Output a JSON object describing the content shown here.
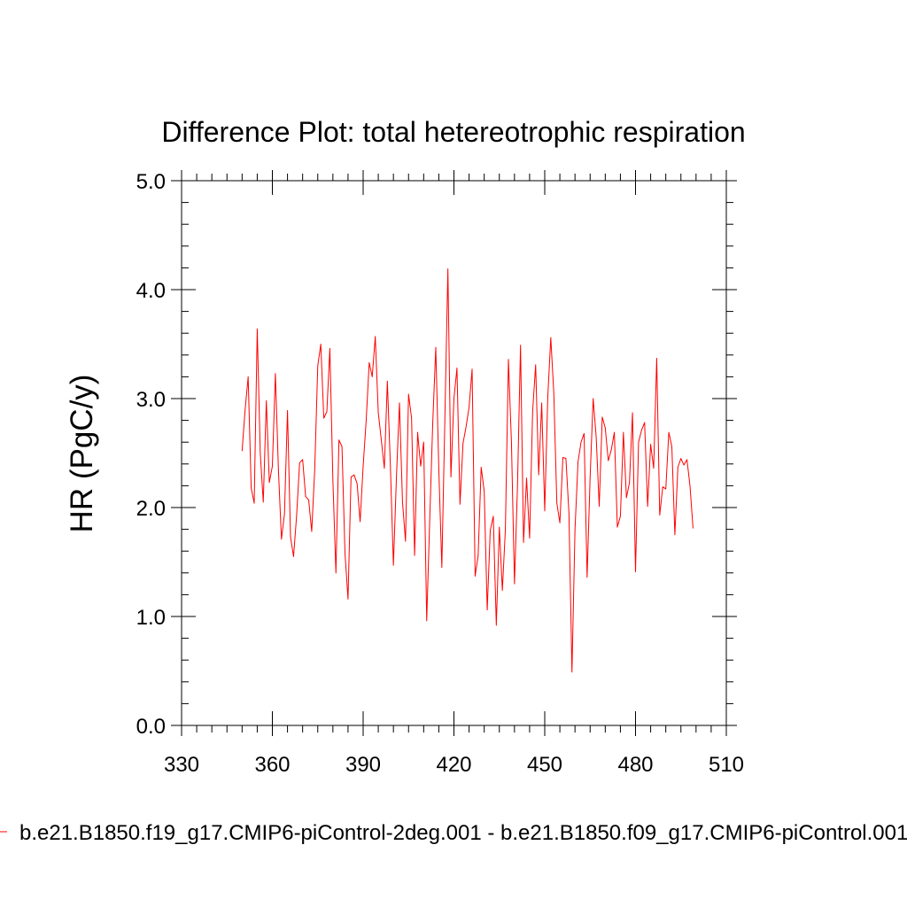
{
  "chart_data": {
    "type": "line",
    "title": "Difference Plot: total hetereotrophic respiration",
    "xlabel": "",
    "ylabel": "HR  (PgC/y)",
    "xlim": [
      330,
      510
    ],
    "ylim": [
      0,
      5
    ],
    "x_ticks": [
      330,
      360,
      390,
      420,
      450,
      480,
      510
    ],
    "x_tick_labels": [
      "330",
      "360",
      "390",
      "420",
      "450",
      "480",
      "510"
    ],
    "y_ticks": [
      0,
      1,
      2,
      3,
      4,
      5
    ],
    "y_tick_labels": [
      "0.0",
      "1.0",
      "2.0",
      "3.0",
      "4.0",
      "5.0"
    ],
    "x_minor_step": 5,
    "y_minor_step": 0.2,
    "grid": false,
    "legend_position": "bottom",
    "series": [
      {
        "name": "b.e21.B1850.f19_g17.CMIP6-piControl-2deg.001 - b.e21.B1850.f09_g17.CMIP6-piControl.001",
        "color": "#ff0000",
        "x": [
          350,
          351,
          352,
          353,
          354,
          355,
          356,
          357,
          358,
          359,
          360,
          361,
          362,
          363,
          364,
          365,
          366,
          367,
          368,
          369,
          370,
          371,
          372,
          373,
          374,
          375,
          376,
          377,
          378,
          379,
          380,
          381,
          382,
          383,
          384,
          385,
          386,
          387,
          388,
          389,
          390,
          391,
          392,
          393,
          394,
          395,
          396,
          397,
          398,
          399,
          400,
          401,
          402,
          403,
          404,
          405,
          406,
          407,
          408,
          409,
          410,
          411,
          412,
          413,
          414,
          415,
          416,
          417,
          418,
          419,
          420,
          421,
          422,
          423,
          424,
          425,
          426,
          427,
          428,
          429,
          430,
          431,
          432,
          433,
          434,
          435,
          436,
          437,
          438,
          439,
          440,
          441,
          442,
          443,
          444,
          445,
          446,
          447,
          448,
          449,
          450,
          451,
          452,
          453,
          454,
          455,
          456,
          457,
          458,
          459,
          460,
          461,
          462,
          463,
          464,
          465,
          466,
          467,
          468,
          469,
          470,
          471,
          472,
          473,
          474,
          475,
          476,
          477,
          478,
          479,
          480,
          481,
          482,
          483,
          484,
          485,
          486,
          487,
          488,
          489,
          490,
          491,
          492,
          493,
          494,
          495,
          496,
          497,
          498,
          499
        ],
        "values": [
          2.52,
          2.9,
          3.2,
          2.18,
          2.04,
          3.64,
          2.5,
          2.05,
          2.98,
          2.23,
          2.38,
          3.23,
          2.35,
          1.71,
          1.94,
          2.89,
          1.73,
          1.55,
          1.92,
          2.41,
          2.44,
          2.1,
          2.07,
          1.78,
          2.35,
          3.3,
          3.5,
          2.82,
          2.88,
          3.46,
          2.25,
          1.4,
          2.62,
          2.56,
          1.58,
          1.16,
          2.28,
          2.3,
          2.22,
          1.87,
          2.38,
          2.8,
          3.33,
          3.2,
          3.57,
          2.87,
          2.62,
          2.36,
          3.16,
          2.38,
          1.47,
          2.28,
          2.96,
          2.05,
          1.69,
          3.04,
          2.82,
          1.56,
          2.69,
          2.38,
          2.6,
          0.96,
          1.89,
          2.78,
          3.47,
          2.35,
          1.45,
          2.81,
          4.19,
          2.28,
          3.0,
          3.28,
          2.03,
          2.59,
          2.74,
          2.92,
          3.27,
          1.37,
          1.56,
          2.37,
          2.15,
          1.06,
          1.79,
          1.92,
          0.92,
          1.82,
          1.24,
          1.8,
          3.36,
          2.6,
          1.3,
          2.2,
          3.49,
          1.68,
          2.27,
          1.72,
          2.88,
          3.31,
          2.3,
          2.96,
          1.97,
          3.01,
          3.56,
          3.05,
          2.04,
          1.86,
          2.46,
          2.45,
          1.95,
          0.49,
          1.8,
          2.42,
          2.6,
          2.68,
          1.36,
          2.28,
          3.0,
          2.65,
          2.01,
          2.83,
          2.73,
          2.43,
          2.53,
          2.69,
          1.82,
          1.92,
          2.69,
          2.09,
          2.23,
          2.87,
          1.41,
          2.6,
          2.71,
          2.78,
          2.01,
          2.58,
          2.36,
          3.37,
          1.93,
          2.19,
          2.17,
          2.69,
          2.56,
          1.75,
          2.37,
          2.45,
          2.39,
          2.44,
          2.2,
          1.81
        ]
      }
    ]
  }
}
